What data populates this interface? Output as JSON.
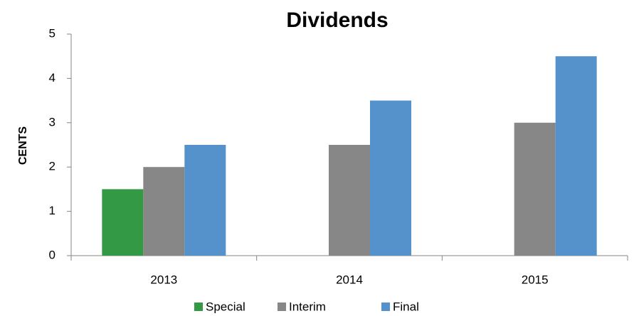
{
  "chart_data": {
    "type": "bar",
    "title": "Dividends",
    "y_label": "CENTS",
    "categories": [
      "2013",
      "2014",
      "2015"
    ],
    "series": [
      {
        "name": "Special",
        "color": "#339944",
        "values": [
          1.5,
          null,
          null
        ]
      },
      {
        "name": "Interim",
        "color": "#878787",
        "values": [
          2,
          2.5,
          3
        ]
      },
      {
        "name": "Final",
        "color": "#5592cb",
        "values": [
          2.5,
          3.5,
          4.5
        ]
      }
    ],
    "ylim": [
      0,
      5
    ],
    "yticks": [
      0,
      1,
      2,
      3,
      4,
      5
    ],
    "grid": false,
    "legend": "bottom"
  }
}
